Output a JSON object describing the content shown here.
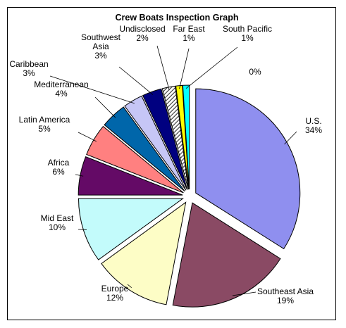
{
  "chart_data": {
    "type": "pie",
    "title": "Crew Boats Inspection Graph",
    "slices": [
      {
        "label": "U.S.",
        "value": 34,
        "pct_label": "34%",
        "color": "#8f8fef"
      },
      {
        "label": "Southeast Asia",
        "value": 19,
        "pct_label": "19%",
        "color": "#8a4a64"
      },
      {
        "label": "Europe",
        "value": 12,
        "pct_label": "12%",
        "color": "#fdfdc6"
      },
      {
        "label": "Mid East",
        "value": 10,
        "pct_label": "10%",
        "color": "#c3fbfb"
      },
      {
        "label": "Africa",
        "value": 6,
        "pct_label": "6%",
        "color": "#640a66"
      },
      {
        "label": "Latin America",
        "value": 5,
        "pct_label": "5%",
        "color": "#ff8080"
      },
      {
        "label": "Mediterranean",
        "value": 4,
        "pct_label": "4%",
        "color": "#0066aa"
      },
      {
        "label": "Caribbean",
        "value": 3,
        "pct_label": "3%",
        "color": "#c6c6f6"
      },
      {
        "label": "Southwest\nAsia",
        "value": 3,
        "pct_label": "3%",
        "color": "#000080"
      },
      {
        "label": "Undisclosed",
        "value": 2,
        "pct_label": "2%",
        "color": "#9a9a9a",
        "pattern": "hatched"
      },
      {
        "label": "Far East",
        "value": 1,
        "pct_label": "1%",
        "color": "#ffff00"
      },
      {
        "label": "South Pacific",
        "value": 1,
        "pct_label": "1%",
        "color": "#00ffff"
      },
      {
        "label": "",
        "value": 0,
        "pct_label": "0%",
        "color": "#ffffff"
      }
    ]
  }
}
